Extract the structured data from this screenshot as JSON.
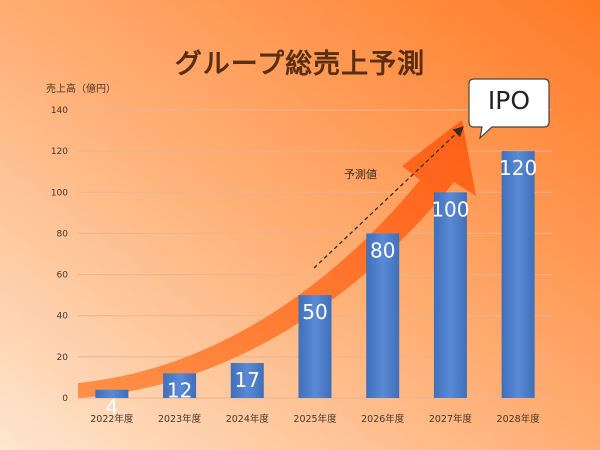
{
  "colors": {
    "background_light": "#fde6cf",
    "background_dark": "#ff7a25",
    "arrow": "#ff6a1a",
    "bar": "#4a7cc8",
    "grid": "#e8b58f",
    "title": "#5a2e12"
  },
  "chart_data": {
    "type": "bar",
    "title": "グループ総売上予測",
    "ylabel": "売上高（億円）",
    "xlabel": "",
    "categories": [
      "2022年度",
      "2023年度",
      "2024年度",
      "2025年度",
      "2026年度",
      "2027年度",
      "2028年度"
    ],
    "values": [
      4,
      12,
      17,
      50,
      80,
      100,
      120
    ],
    "ylim": [
      0,
      140
    ],
    "yticks": [
      0,
      20,
      40,
      60,
      80,
      100,
      120,
      140
    ],
    "grid": true,
    "annotations": [
      {
        "text": "予測値",
        "from_category": "2025年度",
        "to_category": "2028年度"
      },
      {
        "text": "IPO",
        "category": "2028年度",
        "style": "speech-bubble"
      }
    ]
  }
}
